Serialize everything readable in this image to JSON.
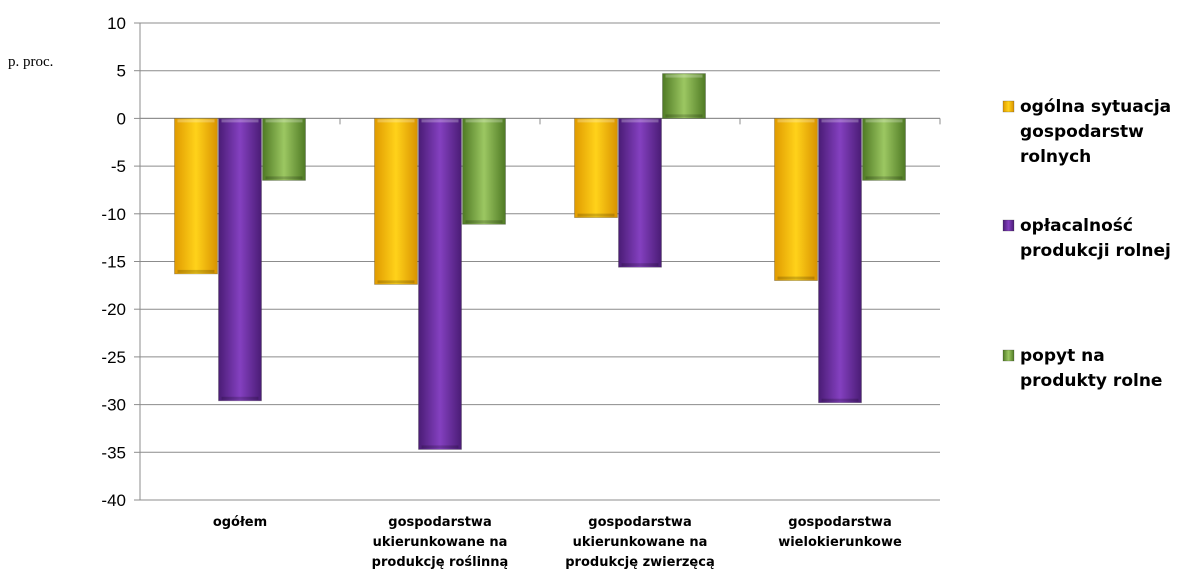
{
  "chart_data": {
    "type": "bar",
    "unit_label": "p. proc.",
    "ylim": [
      -40,
      10
    ],
    "y_ticks": [
      10,
      5,
      0,
      -5,
      -10,
      -15,
      -20,
      -25,
      -30,
      -35,
      -40
    ],
    "grid": true,
    "legend_position": "right",
    "categories": [
      [
        "ogółem"
      ],
      [
        "gospodarstwa",
        "ukierunkowane na",
        "produkcję roślinną"
      ],
      [
        "gospodarstwa",
        "ukierunkowane na",
        "produkcję zwierzęcą"
      ],
      [
        "gospodarstwa",
        "wielokierunkowe"
      ]
    ],
    "series": [
      {
        "name": [
          "ogólna sytuacja",
          "gospodarstw",
          "rolnych"
        ],
        "color": "#f2b800",
        "values": [
          -16.3,
          -17.4,
          -10.4,
          -17.0
        ]
      },
      {
        "name": [
          "opłacalność",
          "produkcji rolnej"
        ],
        "color": "#6a2c9c",
        "values": [
          -29.6,
          -34.7,
          -15.6,
          -29.8
        ]
      },
      {
        "name": [
          "popyt na",
          "produkty rolne"
        ],
        "color": "#76a33b",
        "values": [
          -6.5,
          -11.1,
          4.7,
          -6.5
        ]
      }
    ]
  }
}
